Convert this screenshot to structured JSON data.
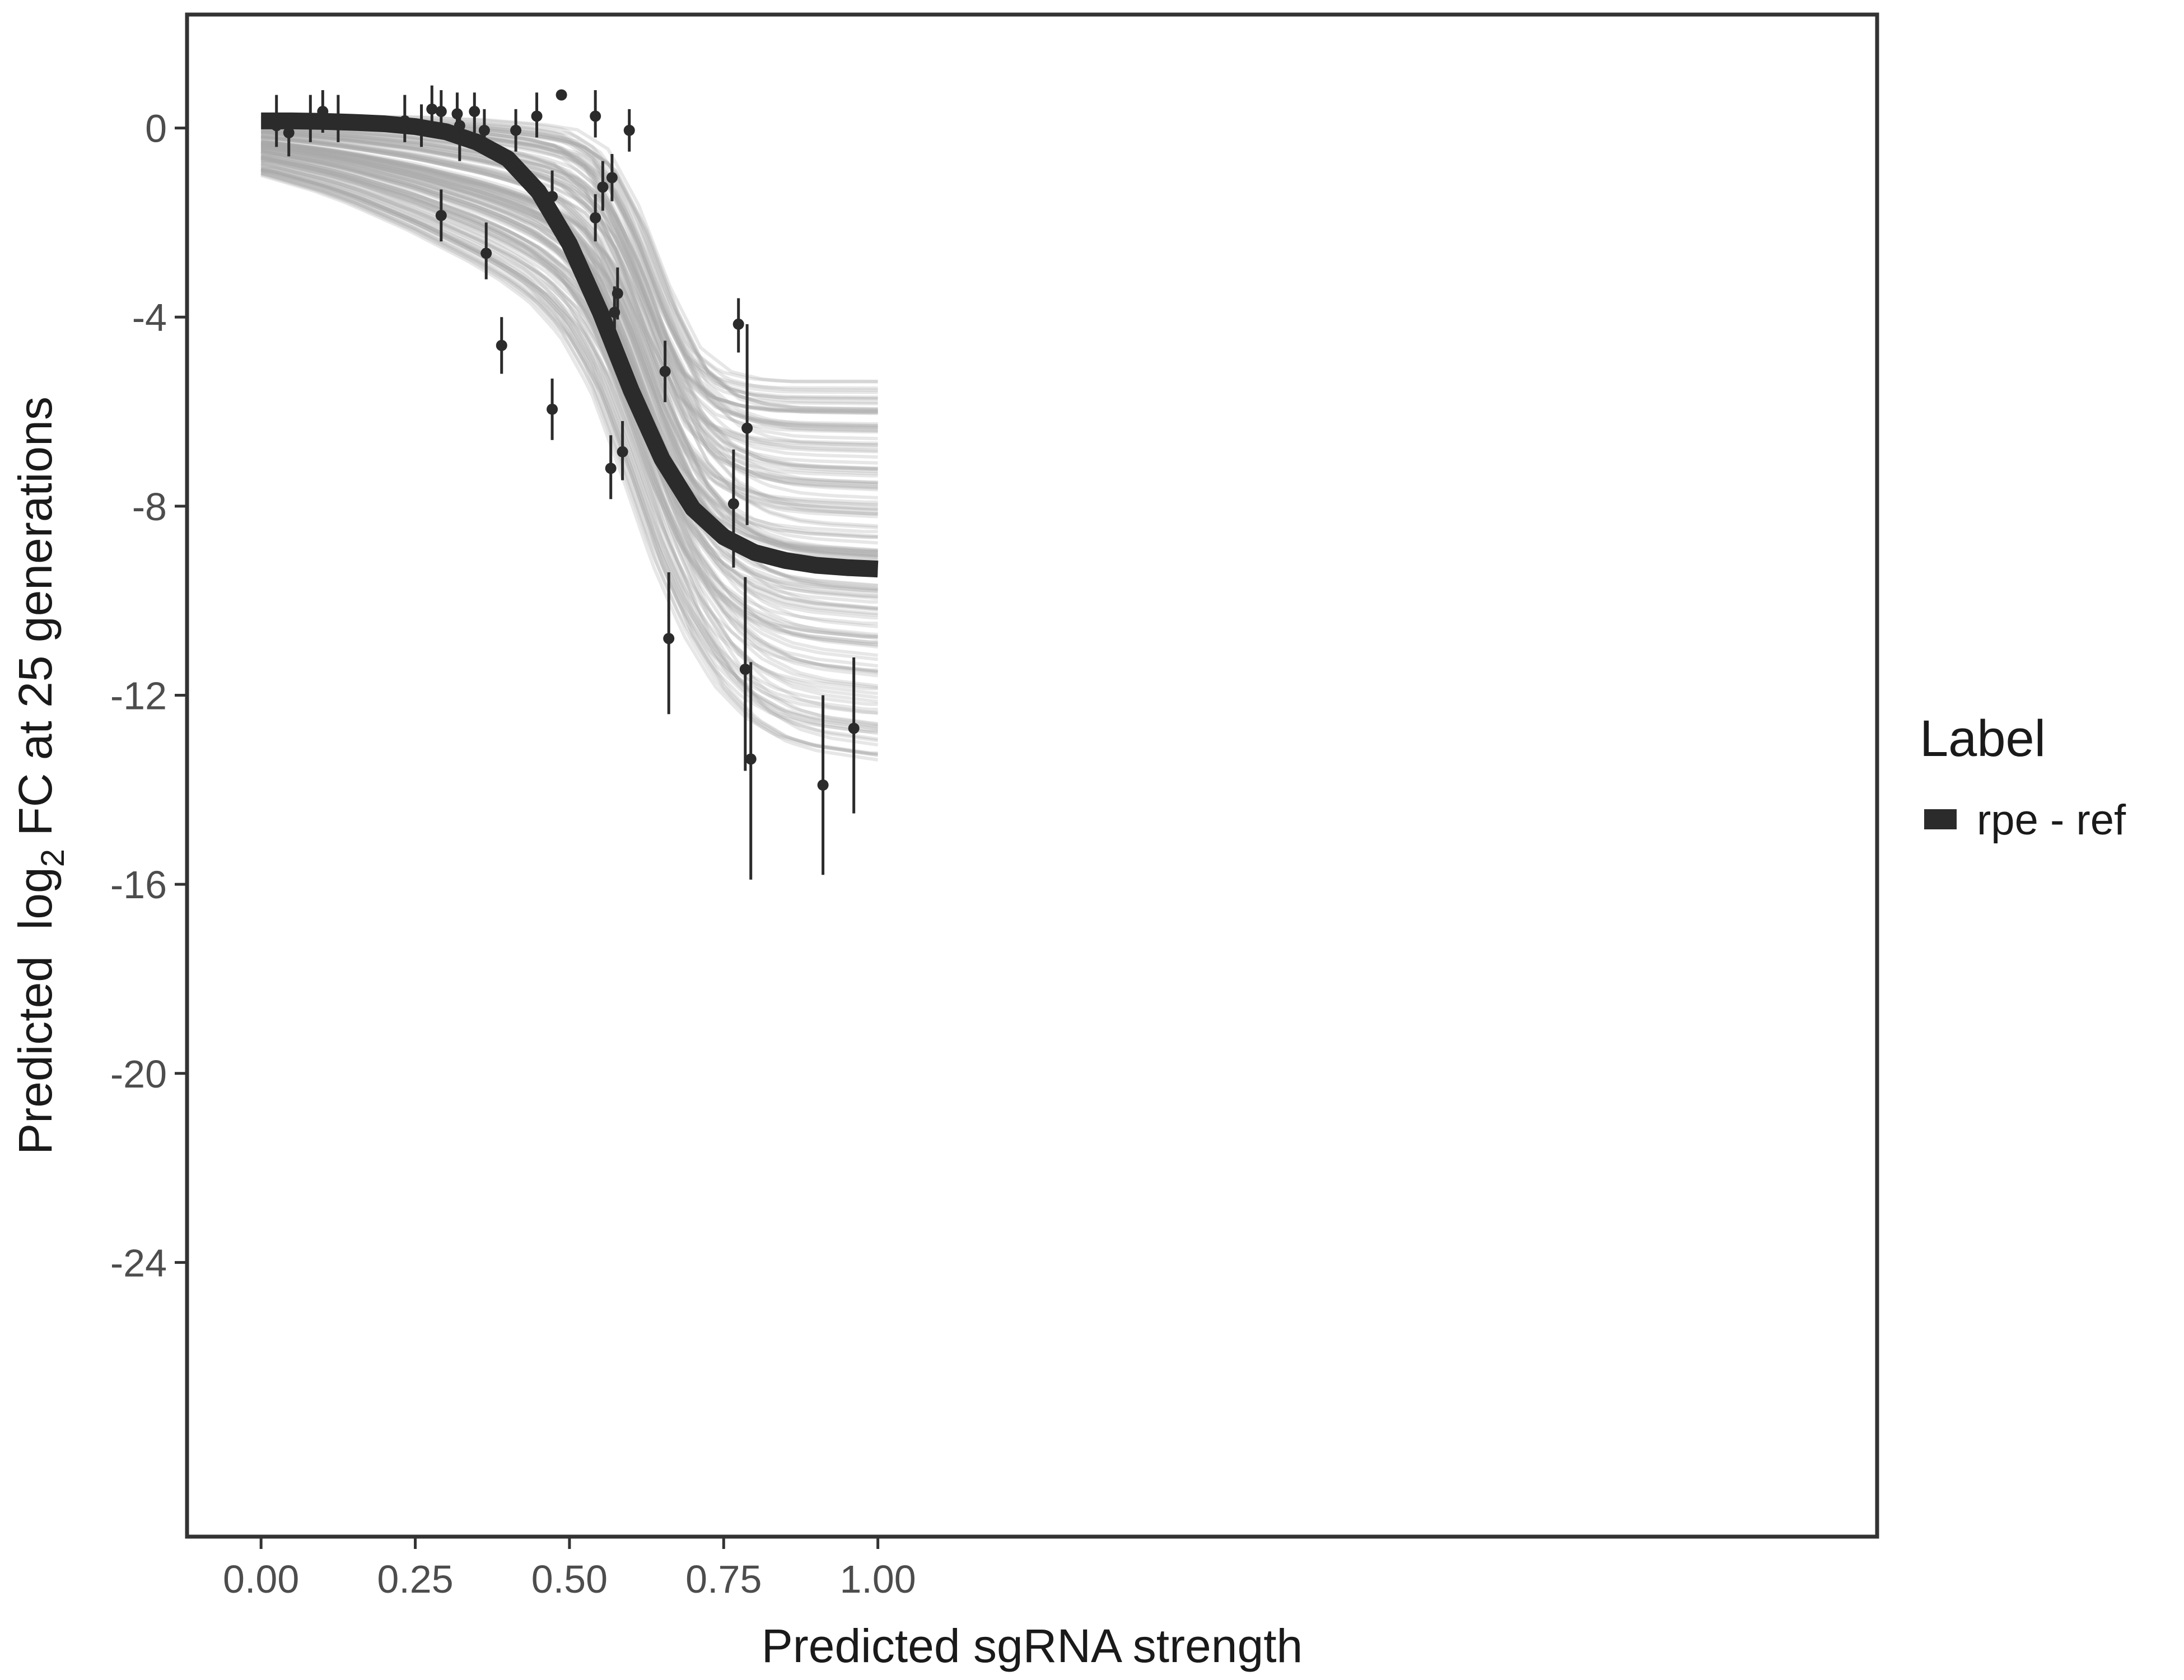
{
  "chart_data": {
    "type": "line",
    "title": "",
    "xlabel": "Predicted sgRNA strength",
    "ylabel": {
      "prefix": "Predicted  log",
      "subscript": "2",
      "suffix": " FC at 25 generations"
    },
    "xlim": [
      -0.12,
      2.62
    ],
    "ylim": [
      -29.8,
      2.4
    ],
    "x_ticks": [
      0,
      0.25,
      0.5,
      0.75,
      1.0
    ],
    "x_tick_labels": [
      "0.00",
      "0.25",
      "0.50",
      "0.75",
      "1.00"
    ],
    "y_ticks": [
      0,
      -4,
      -8,
      -12,
      -16,
      -20,
      -24
    ],
    "y_tick_labels": [
      "0",
      "-4",
      "-8",
      "-12",
      "-16",
      "-20",
      "-24"
    ],
    "grid": false,
    "legend": {
      "title": "Label",
      "position": "right",
      "entries": [
        {
          "label": "rpe - ref",
          "color": "#2b2b2b"
        }
      ]
    },
    "colors": {
      "fit_line": "#2b2b2b",
      "posterior_band": "#aaaaaa",
      "points": "#2b2b2b",
      "panel_border": "#333333"
    },
    "fit_curve": {
      "name": "rpe - ref",
      "x": [
        0,
        0.05,
        0.1,
        0.15,
        0.2,
        0.25,
        0.3,
        0.35,
        0.4,
        0.45,
        0.5,
        0.55,
        0.6,
        0.65,
        0.7,
        0.75,
        0.8,
        0.85,
        0.9,
        0.95,
        1.0
      ],
      "y": [
        0.15,
        0.15,
        0.14,
        0.12,
        0.09,
        0.03,
        -0.08,
        -0.3,
        -0.65,
        -1.35,
        -2.45,
        -3.9,
        -5.55,
        -7.0,
        -8.05,
        -8.65,
        -8.98,
        -9.15,
        -9.25,
        -9.3,
        -9.33
      ]
    },
    "posterior_band": {
      "x": [
        0,
        0.05,
        0.1,
        0.15,
        0.2,
        0.25,
        0.3,
        0.35,
        0.4,
        0.45,
        0.5,
        0.55,
        0.6,
        0.65,
        0.7,
        0.75,
        0.8,
        0.85,
        0.9,
        0.95,
        1.0
      ],
      "upper": [
        0.25,
        0.25,
        0.25,
        0.25,
        0.25,
        0.25,
        0.22,
        0.2,
        0.15,
        0.1,
        0,
        -0.4,
        -1.6,
        -3.3,
        -4.6,
        -5.1,
        -5.25,
        -5.3,
        -5.3,
        -5.3,
        -5.3
      ],
      "lower": [
        -1.0,
        -1.2,
        -1.4,
        -1.65,
        -1.95,
        -2.25,
        -2.6,
        -2.95,
        -3.35,
        -3.85,
        -4.6,
        -5.8,
        -7.6,
        -9.5,
        -11.0,
        -12.1,
        -12.8,
        -13.2,
        -13.4,
        -13.5,
        -13.6
      ]
    },
    "points": [
      {
        "x": 0.025,
        "y": 0.05,
        "lo": -0.4,
        "hi": 0.7
      },
      {
        "x": 0.045,
        "y": -0.1,
        "lo": -0.6,
        "hi": 0.3
      },
      {
        "x": 0.08,
        "y": 0.15,
        "lo": -0.3,
        "hi": 0.7
      },
      {
        "x": 0.1,
        "y": 0.35,
        "lo": -0.1,
        "hi": 0.8
      },
      {
        "x": 0.125,
        "y": 0.1,
        "lo": -0.3,
        "hi": 0.7
      },
      {
        "x": 0.233,
        "y": 0.15,
        "lo": -0.3,
        "hi": 0.7
      },
      {
        "x": 0.26,
        "y": 0.0,
        "lo": -0.4,
        "hi": 0.5
      },
      {
        "x": 0.277,
        "y": 0.4,
        "lo": 0.0,
        "hi": 0.9
      },
      {
        "x": 0.292,
        "y": 0.35,
        "lo": -0.1,
        "hi": 0.8
      },
      {
        "x": 0.292,
        "y": -1.85,
        "lo": -2.4,
        "hi": -1.3
      },
      {
        "x": 0.318,
        "y": 0.3,
        "lo": -0.1,
        "hi": 0.75
      },
      {
        "x": 0.322,
        "y": 0.05,
        "lo": -0.7,
        "hi": 0.3
      },
      {
        "x": 0.346,
        "y": 0.35,
        "lo": -0.1,
        "hi": 0.75
      },
      {
        "x": 0.362,
        "y": -0.05,
        "lo": -0.5,
        "hi": 0.4
      },
      {
        "x": 0.365,
        "y": -2.65,
        "lo": -3.2,
        "hi": -2.0
      },
      {
        "x": 0.39,
        "y": -4.6,
        "lo": -5.2,
        "hi": -4.0
      },
      {
        "x": 0.413,
        "y": -0.05,
        "lo": -0.5,
        "hi": 0.4
      },
      {
        "x": 0.447,
        "y": 0.25,
        "lo": -0.2,
        "hi": 0.75
      },
      {
        "x": 0.472,
        "y": -1.45,
        "lo": -1.9,
        "hi": -0.9
      },
      {
        "x": 0.472,
        "y": -5.95,
        "lo": -6.6,
        "hi": -5.3
      },
      {
        "x": 0.487,
        "y": 0.7,
        "lo": 0.6,
        "hi": 0.8
      },
      {
        "x": 0.542,
        "y": 0.25,
        "lo": -0.2,
        "hi": 0.8
      },
      {
        "x": 0.542,
        "y": -1.9,
        "lo": -2.4,
        "hi": -1.4
      },
      {
        "x": 0.554,
        "y": -1.25,
        "lo": -1.75,
        "hi": -0.7
      },
      {
        "x": 0.567,
        "y": -7.2,
        "lo": -7.85,
        "hi": -6.5
      },
      {
        "x": 0.569,
        "y": -1.05,
        "lo": -1.55,
        "hi": -0.55
      },
      {
        "x": 0.573,
        "y": -3.9,
        "lo": -4.45,
        "hi": -3.35
      },
      {
        "x": 0.578,
        "y": -3.5,
        "lo": -4.05,
        "hi": -2.95
      },
      {
        "x": 0.586,
        "y": -6.85,
        "lo": -7.45,
        "hi": -6.2
      },
      {
        "x": 0.597,
        "y": -0.05,
        "lo": -0.5,
        "hi": 0.4
      },
      {
        "x": 0.655,
        "y": -5.15,
        "lo": -5.8,
        "hi": -4.5
      },
      {
        "x": 0.661,
        "y": -10.8,
        "lo": -12.4,
        "hi": -9.4
      },
      {
        "x": 0.766,
        "y": -7.95,
        "lo": -9.3,
        "hi": -6.8
      },
      {
        "x": 0.774,
        "y": -4.15,
        "lo": -4.75,
        "hi": -3.6
      },
      {
        "x": 0.785,
        "y": -11.45,
        "lo": -13.6,
        "hi": -9.5
      },
      {
        "x": 0.788,
        "y": -6.35,
        "lo": -8.4,
        "hi": -4.15
      },
      {
        "x": 0.794,
        "y": -13.35,
        "lo": -15.9,
        "hi": -11.3
      },
      {
        "x": 0.911,
        "y": -13.9,
        "lo": -15.8,
        "hi": -12.0
      },
      {
        "x": 0.961,
        "y": -12.7,
        "lo": -14.5,
        "hi": -11.2
      }
    ]
  }
}
